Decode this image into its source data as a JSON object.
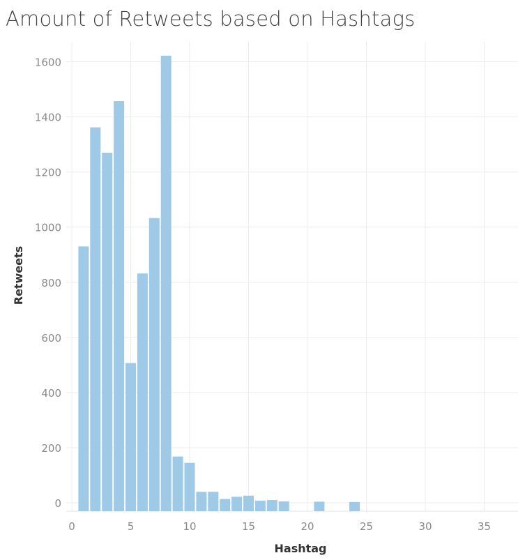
{
  "chart_data": {
    "type": "bar",
    "title": "Amount of Retweets based on Hashtags",
    "xlabel": "Hashtag",
    "ylabel": "Retweets",
    "x": [
      0,
      1,
      2,
      3,
      4,
      5,
      6,
      7,
      8,
      9,
      10,
      11,
      12,
      13,
      14,
      15,
      16,
      17,
      18,
      19,
      20,
      21,
      22,
      23,
      24,
      25,
      26,
      27,
      28,
      29,
      30,
      31,
      32,
      33,
      34,
      35,
      36
    ],
    "values": [
      0,
      930,
      1362,
      1270,
      1457,
      507,
      832,
      1033,
      1622,
      168,
      145,
      40,
      40,
      14,
      22,
      26,
      8,
      10,
      5,
      0,
      0,
      4,
      0,
      0,
      3,
      0,
      0,
      0,
      0,
      0,
      0,
      0,
      0,
      0,
      0,
      0,
      0
    ],
    "xlim": [
      -0.5,
      37.5
    ],
    "ylim": [
      -30,
      1700
    ],
    "xticks": [
      0,
      5,
      10,
      15,
      20,
      25,
      30,
      35
    ],
    "yticks": [
      0,
      200,
      400,
      600,
      800,
      1000,
      1200,
      1400,
      1600
    ],
    "grid": true,
    "colors": {
      "bar": "#9ecae8",
      "grid": "#ececec"
    }
  }
}
